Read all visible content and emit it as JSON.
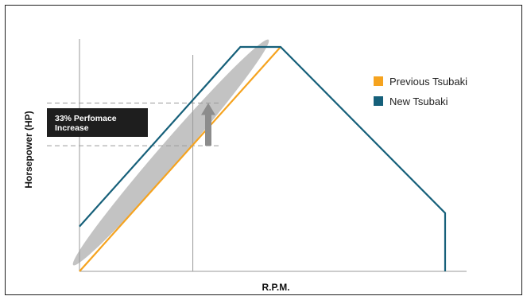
{
  "chart_data": {
    "type": "line",
    "title": "",
    "xlabel": "R.P.M.",
    "ylabel": "Horsepower (HP)",
    "x_ticks_shown": false,
    "y_ticks_shown": false,
    "reference_rpm": 0.31,
    "xlim": [
      0,
      1
    ],
    "ylim": [
      0,
      1
    ],
    "series": [
      {
        "name": "Previous Tsubaki",
        "color": "#f5a31f",
        "points": [
          [
            0,
            0
          ],
          [
            0.55,
            1.0
          ]
        ]
      },
      {
        "name": "New Tsubaki",
        "color": "#16607a",
        "points": [
          [
            0,
            0.2
          ],
          [
            0.44,
            1.0
          ],
          [
            0.55,
            1.0
          ],
          [
            1.0,
            0.26
          ],
          [
            1.0,
            0
          ]
        ]
      }
    ],
    "annotation": {
      "text": "33% Perfomace Increase",
      "lines": [
        "33% Perfomace",
        "Increase"
      ],
      "lower_value": 0.56,
      "upper_value": 0.75
    },
    "legend_position": "right",
    "grid": false
  },
  "colors": {
    "previous": "#f5a31f",
    "new": "#16607a",
    "highlight": "#b4b4b4",
    "arrow": "#8c8c8c",
    "callout_bg": "#1e1e1e"
  }
}
